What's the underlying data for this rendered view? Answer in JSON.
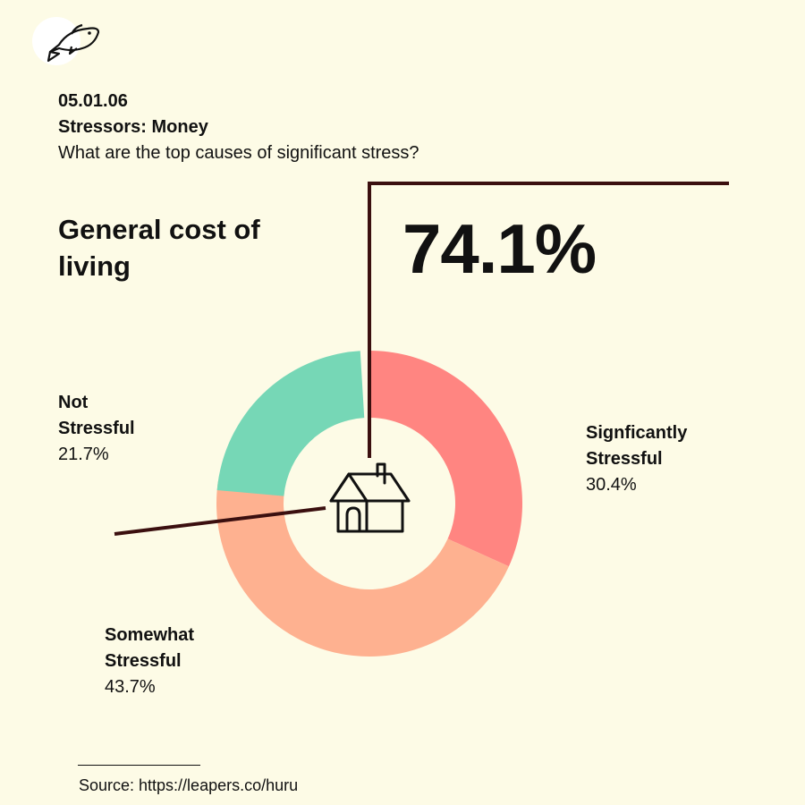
{
  "header": {
    "code": "05.01.06",
    "section": "Stressors: Money",
    "question": "What are the top causes of significant stress?"
  },
  "topic": "General cost of living",
  "headline_value": "74.1%",
  "source": "Source: https://leapers.co/huru",
  "icons": {
    "logo": "fish-icon",
    "center": "house-icon"
  },
  "colors": {
    "background": "#fdfbe6",
    "significantly": "#ff8581",
    "somewhat": "#feb190",
    "not": "#76d7b6",
    "leader": "#3b0f0f"
  },
  "chart_data": {
    "type": "pie",
    "subtype": "donut",
    "slices": [
      {
        "label": "Signficantly Stressful",
        "value": 30.4,
        "value_label": "30.4%",
        "color": "#ff8581"
      },
      {
        "label": "Somewhat Stressful",
        "value": 43.7,
        "value_label": "43.7%",
        "color": "#feb190"
      },
      {
        "label": "Not Stressful",
        "value": 21.7,
        "value_label": "21.7%",
        "color": "#76d7b6"
      }
    ],
    "start": "top",
    "direction": "clockwise"
  }
}
